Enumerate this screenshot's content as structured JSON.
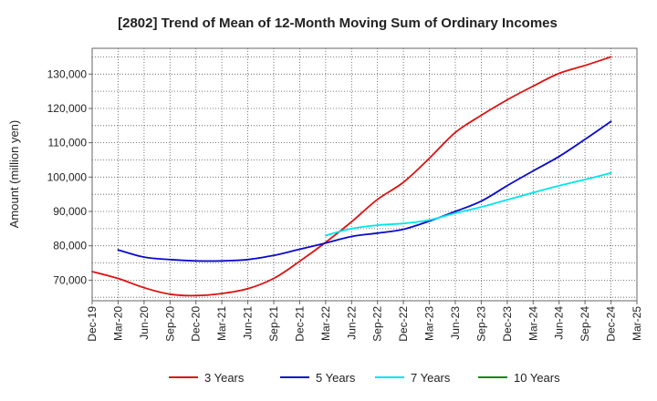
{
  "chart_data": {
    "type": "line",
    "title": "[2802]  Trend of Mean of 12-Month Moving Sum of Ordinary Incomes",
    "xlabel": "",
    "ylabel": "Amount (million yen)",
    "ylim": [
      64000,
      137500
    ],
    "yticks": [
      70000,
      80000,
      90000,
      100000,
      110000,
      120000,
      130000
    ],
    "ytick_labels": [
      "70,000",
      "80,000",
      "90,000",
      "100,000",
      "110,000",
      "120,000",
      "130,000"
    ],
    "categories": [
      "Dec-19",
      "Mar-20",
      "Jun-20",
      "Sep-20",
      "Dec-20",
      "Mar-21",
      "Jun-21",
      "Sep-21",
      "Dec-21",
      "Mar-22",
      "Jun-22",
      "Sep-22",
      "Dec-22",
      "Mar-23",
      "Jun-23",
      "Sep-23",
      "Dec-23",
      "Mar-24",
      "Jun-24",
      "Sep-24",
      "Dec-24",
      "Mar-25"
    ],
    "grid": true,
    "legend_position": "bottom",
    "series": [
      {
        "name": "3 Years",
        "color": "#dd1111",
        "values": [
          72500,
          70500,
          67800,
          65900,
          65500,
          66100,
          67500,
          70500,
          75500,
          81000,
          87000,
          93500,
          98500,
          105500,
          113000,
          118000,
          122500,
          126500,
          130200,
          132500,
          135000,
          null
        ]
      },
      {
        "name": "5 Years",
        "color": "#0a0acc",
        "values": [
          null,
          78800,
          76700,
          76000,
          75600,
          75600,
          76000,
          77200,
          79000,
          80800,
          82700,
          83700,
          84800,
          87200,
          90000,
          93000,
          97500,
          101800,
          106000,
          111000,
          116200,
          null
        ]
      },
      {
        "name": "7 Years",
        "color": "#00e5ee",
        "values": [
          null,
          null,
          null,
          null,
          null,
          null,
          null,
          null,
          null,
          83000,
          85000,
          86000,
          86500,
          87500,
          89500,
          91300,
          93400,
          95500,
          97500,
          99300,
          101200,
          null
        ]
      },
      {
        "name": "10 Years",
        "color": "#118811",
        "values": [
          null,
          null,
          null,
          null,
          null,
          null,
          null,
          null,
          null,
          null,
          null,
          null,
          null,
          null,
          null,
          null,
          null,
          null,
          null,
          null,
          null,
          null
        ]
      }
    ]
  }
}
